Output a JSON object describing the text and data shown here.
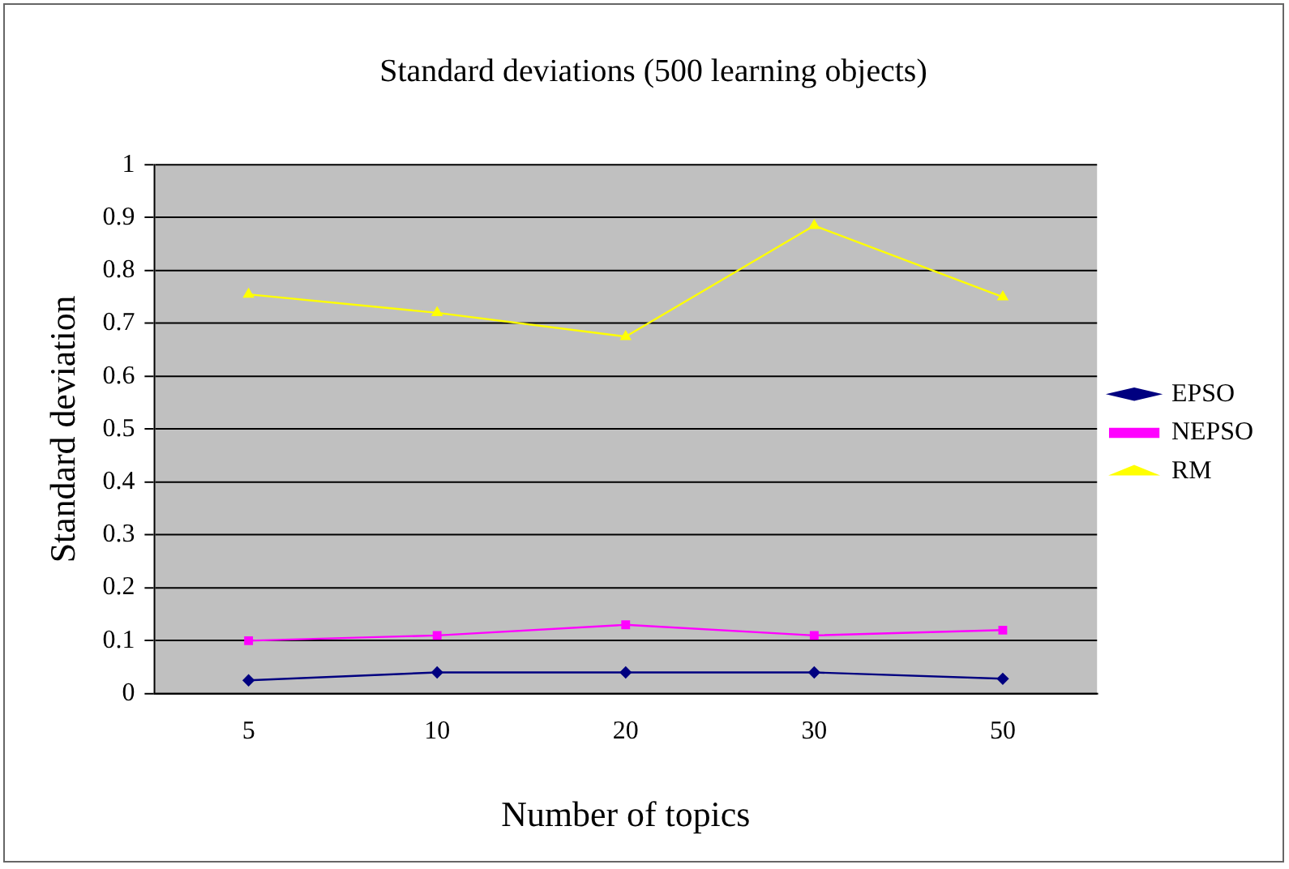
{
  "chart_data": {
    "type": "line",
    "title": "Standard deviations (500 learning objects)",
    "xlabel": "Number of topics",
    "ylabel": "Standard deviation",
    "categories": [
      "5",
      "10",
      "20",
      "30",
      "50"
    ],
    "series": [
      {
        "name": "EPSO",
        "color": "#000080",
        "marker": "diamond",
        "values": [
          0.025,
          0.04,
          0.04,
          0.04,
          0.028
        ]
      },
      {
        "name": "NEPSO",
        "color": "#ff00ff",
        "marker": "square",
        "values": [
          0.1,
          0.11,
          0.13,
          0.11,
          0.12
        ]
      },
      {
        "name": "RM",
        "color": "#ffff00",
        "marker": "triangle",
        "values": [
          0.755,
          0.72,
          0.675,
          0.885,
          0.75
        ]
      }
    ],
    "ylim": [
      0,
      1
    ],
    "yticks": [
      0,
      0.1,
      0.2,
      0.3,
      0.4,
      0.5,
      0.6,
      0.7,
      0.8,
      0.9,
      1
    ],
    "grid": "y",
    "legend": "right"
  }
}
